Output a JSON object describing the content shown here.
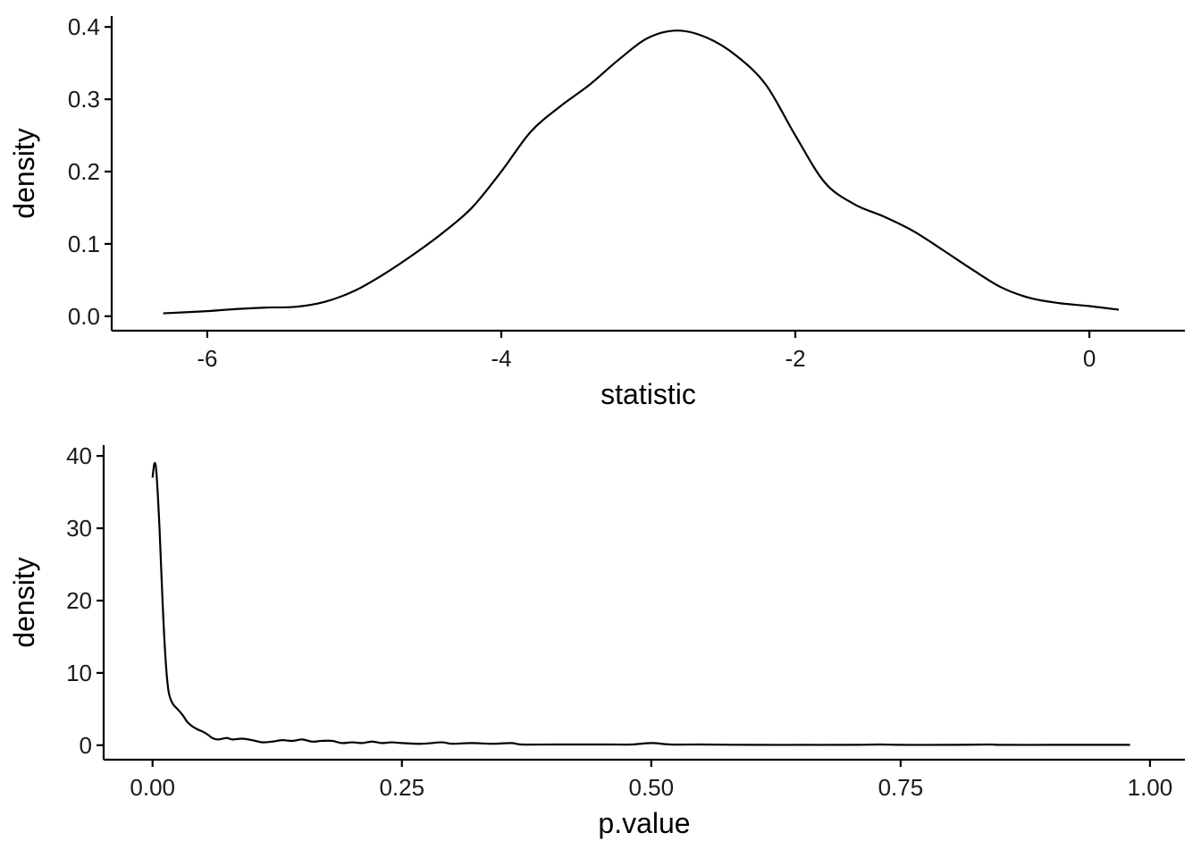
{
  "chart_data": [
    {
      "type": "line",
      "title": "",
      "xlabel": "statistic",
      "ylabel": "density",
      "xlim": [
        -6.65,
        0.65
      ],
      "ylim": [
        -0.02,
        0.415
      ],
      "xticks": [
        -6,
        -4,
        -2,
        0
      ],
      "xtick_labels": [
        "-6",
        "-4",
        "-2",
        "0"
      ],
      "yticks": [
        0.0,
        0.1,
        0.2,
        0.3,
        0.4
      ],
      "ytick_labels": [
        "0.0",
        "0.1",
        "0.2",
        "0.3",
        "0.4"
      ],
      "grid": false,
      "series": [
        {
          "x": [
            -6.3,
            -6.0,
            -5.8,
            -5.6,
            -5.4,
            -5.2,
            -5.0,
            -4.8,
            -4.6,
            -4.4,
            -4.2,
            -4.0,
            -3.8,
            -3.6,
            -3.4,
            -3.2,
            -3.0,
            -2.8,
            -2.6,
            -2.4,
            -2.2,
            -2.0,
            -1.8,
            -1.6,
            -1.4,
            -1.2,
            -1.0,
            -0.8,
            -0.6,
            -0.4,
            -0.2,
            0.0,
            0.2
          ],
          "y": [
            0.004,
            0.007,
            0.01,
            0.012,
            0.013,
            0.02,
            0.035,
            0.058,
            0.085,
            0.115,
            0.15,
            0.2,
            0.255,
            0.29,
            0.32,
            0.355,
            0.385,
            0.395,
            0.385,
            0.36,
            0.32,
            0.25,
            0.185,
            0.155,
            0.138,
            0.118,
            0.092,
            0.065,
            0.04,
            0.025,
            0.018,
            0.014,
            0.009
          ]
        }
      ]
    },
    {
      "type": "line",
      "title": "",
      "xlabel": "p.value",
      "ylabel": "density",
      "xlim": [
        -0.049,
        1.035
      ],
      "ylim": [
        -2.0,
        41.5
      ],
      "xticks": [
        0.0,
        0.25,
        0.5,
        0.75,
        1.0
      ],
      "xtick_labels": [
        "0.00",
        "0.25",
        "0.50",
        "0.75",
        "1.00"
      ],
      "yticks": [
        0,
        10,
        20,
        30,
        40
      ],
      "ytick_labels": [
        "0",
        "10",
        "20",
        "30",
        "40"
      ],
      "grid": false,
      "series": [
        {
          "x": [
            0.0,
            0.002,
            0.004,
            0.007,
            0.01,
            0.013,
            0.016,
            0.02,
            0.025,
            0.03,
            0.035,
            0.04,
            0.045,
            0.05,
            0.055,
            0.06,
            0.065,
            0.07,
            0.075,
            0.08,
            0.09,
            0.1,
            0.11,
            0.12,
            0.13,
            0.14,
            0.15,
            0.16,
            0.17,
            0.18,
            0.19,
            0.2,
            0.21,
            0.22,
            0.23,
            0.24,
            0.25,
            0.27,
            0.29,
            0.3,
            0.32,
            0.34,
            0.36,
            0.37,
            0.4,
            0.43,
            0.46,
            0.48,
            0.5,
            0.52,
            0.55,
            0.6,
            0.65,
            0.7,
            0.73,
            0.75,
            0.8,
            0.84,
            0.85,
            0.9,
            0.95,
            0.98
          ],
          "y": [
            37.0,
            39.0,
            37.5,
            30.0,
            20.0,
            12.0,
            7.5,
            5.8,
            5.0,
            4.2,
            3.2,
            2.6,
            2.2,
            1.9,
            1.5,
            1.0,
            0.8,
            0.9,
            1.0,
            0.8,
            0.9,
            0.7,
            0.4,
            0.5,
            0.7,
            0.6,
            0.8,
            0.5,
            0.6,
            0.6,
            0.3,
            0.4,
            0.3,
            0.5,
            0.3,
            0.4,
            0.3,
            0.2,
            0.4,
            0.2,
            0.3,
            0.2,
            0.3,
            0.1,
            0.1,
            0.1,
            0.1,
            0.1,
            0.3,
            0.1,
            0.1,
            0.05,
            0.05,
            0.05,
            0.1,
            0.05,
            0.05,
            0.1,
            0.05,
            0.05,
            0.05,
            0.05
          ]
        }
      ]
    }
  ]
}
